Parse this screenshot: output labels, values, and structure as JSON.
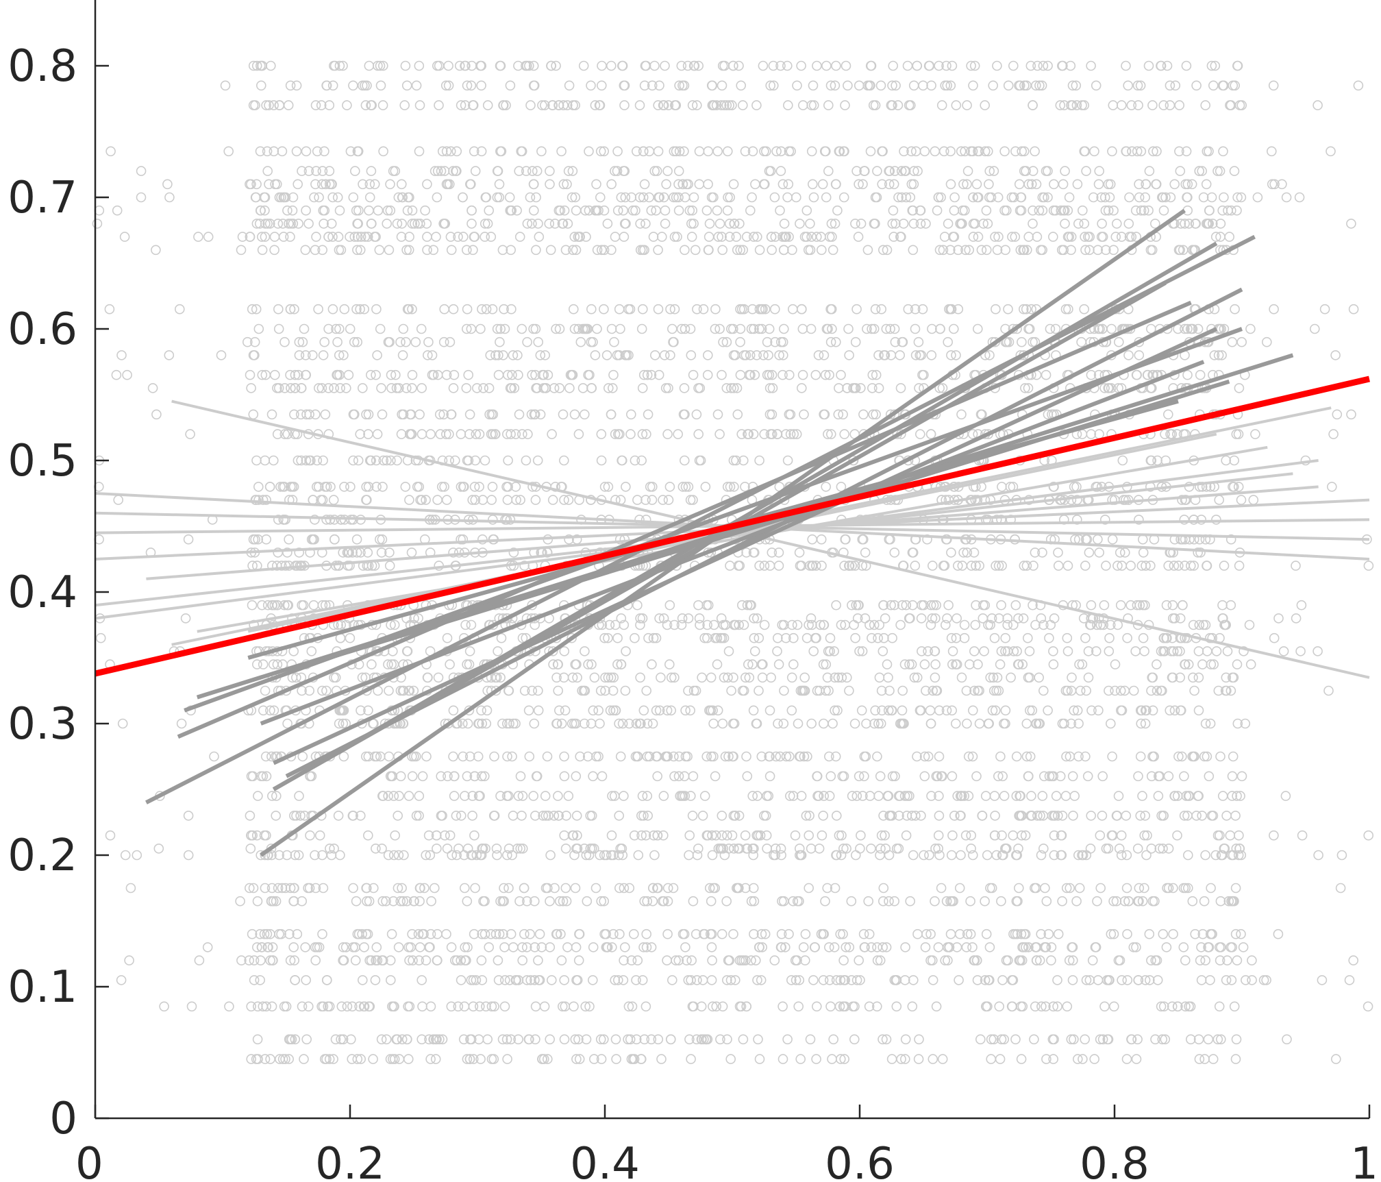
{
  "chart_data": {
    "type": "scatter",
    "title": "",
    "xlabel": "",
    "ylabel": "",
    "xlim": [
      0,
      1
    ],
    "ylim": [
      0,
      0.85
    ],
    "grid": false,
    "legend": "none",
    "x_ticks": [
      "0",
      "0.2",
      "0.4",
      "0.6",
      "0.8",
      "1"
    ],
    "y_ticks": [
      "0",
      "0.1",
      "0.2",
      "0.3",
      "0.4",
      "0.5",
      "0.6",
      "0.7",
      "0.8"
    ],
    "scatter_color": "#cccccc",
    "scatter_y_levels": [
      0.8,
      0.785,
      0.77,
      0.735,
      0.72,
      0.71,
      0.7,
      0.69,
      0.68,
      0.67,
      0.66,
      0.615,
      0.6,
      0.59,
      0.58,
      0.565,
      0.555,
      0.535,
      0.52,
      0.5,
      0.48,
      0.47,
      0.455,
      0.44,
      0.43,
      0.42,
      0.39,
      0.38,
      0.375,
      0.365,
      0.355,
      0.345,
      0.335,
      0.325,
      0.31,
      0.3,
      0.275,
      0.26,
      0.245,
      0.23,
      0.215,
      0.205,
      0.2,
      0.175,
      0.165,
      0.14,
      0.13,
      0.12,
      0.105,
      0.085,
      0.06,
      0.045
    ],
    "fitted_lines": [
      {
        "group": "dark",
        "color": "#999999",
        "x": [
          0.13,
          0.855
        ],
        "y": [
          0.2,
          0.69
        ]
      },
      {
        "group": "dark",
        "color": "#999999",
        "x": [
          0.04,
          0.91
        ],
        "y": [
          0.24,
          0.67
        ]
      },
      {
        "group": "dark",
        "color": "#999999",
        "x": [
          0.14,
          0.88
        ],
        "y": [
          0.25,
          0.665
        ]
      },
      {
        "group": "dark",
        "color": "#999999",
        "x": [
          0.14,
          0.84
        ],
        "y": [
          0.25,
          0.635
        ]
      },
      {
        "group": "dark",
        "color": "#999999",
        "x": [
          0.15,
          0.9
        ],
        "y": [
          0.26,
          0.63
        ]
      },
      {
        "group": "dark",
        "color": "#999999",
        "x": [
          0.065,
          0.86
        ],
        "y": [
          0.29,
          0.62
        ]
      },
      {
        "group": "dark",
        "color": "#999999",
        "x": [
          0.14,
          0.88
        ],
        "y": [
          0.27,
          0.6
        ]
      },
      {
        "group": "dark",
        "color": "#999999",
        "x": [
          0.07,
          0.9
        ],
        "y": [
          0.31,
          0.6
        ]
      },
      {
        "group": "dark",
        "color": "#999999",
        "x": [
          0.08,
          0.94
        ],
        "y": [
          0.32,
          0.58
        ]
      },
      {
        "group": "dark",
        "color": "#999999",
        "x": [
          0.13,
          0.87
        ],
        "y": [
          0.3,
          0.575
        ]
      },
      {
        "group": "dark",
        "color": "#999999",
        "x": [
          0.15,
          0.89
        ],
        "y": [
          0.34,
          0.56
        ]
      },
      {
        "group": "dark",
        "color": "#999999",
        "x": [
          0.12,
          0.85
        ],
        "y": [
          0.35,
          0.545
        ]
      },
      {
        "group": "light",
        "color": "#cccccc",
        "x": [
          0.06,
          1.0
        ],
        "y": [
          0.545,
          0.335
        ]
      },
      {
        "group": "light",
        "color": "#cccccc",
        "x": [
          0.0,
          1.0
        ],
        "y": [
          0.475,
          0.425
        ]
      },
      {
        "group": "light",
        "color": "#cccccc",
        "x": [
          0.0,
          1.0
        ],
        "y": [
          0.46,
          0.44
        ]
      },
      {
        "group": "light",
        "color": "#cccccc",
        "x": [
          0.0,
          1.0
        ],
        "y": [
          0.445,
          0.455
        ]
      },
      {
        "group": "light",
        "color": "#cccccc",
        "x": [
          0.0,
          1.0
        ],
        "y": [
          0.425,
          0.47
        ]
      },
      {
        "group": "light",
        "color": "#cccccc",
        "x": [
          0.04,
          0.96
        ],
        "y": [
          0.41,
          0.48
        ]
      },
      {
        "group": "light",
        "color": "#cccccc",
        "x": [
          0.0,
          0.94
        ],
        "y": [
          0.39,
          0.49
        ]
      },
      {
        "group": "light",
        "color": "#cccccc",
        "x": [
          0.0,
          0.96
        ],
        "y": [
          0.38,
          0.5
        ]
      },
      {
        "group": "light",
        "color": "#cccccc",
        "x": [
          0.08,
          0.92
        ],
        "y": [
          0.37,
          0.51
        ]
      },
      {
        "group": "light",
        "color": "#cccccc",
        "x": [
          0.12,
          0.88
        ],
        "y": [
          0.37,
          0.52
        ]
      },
      {
        "group": "light",
        "color": "#cccccc",
        "x": [
          0.06,
          0.97
        ],
        "y": [
          0.36,
          0.54
        ]
      },
      {
        "group": "mean",
        "color": "#ff0000",
        "x": [
          0.0,
          1.0
        ],
        "y": [
          0.338,
          0.562
        ]
      }
    ]
  }
}
